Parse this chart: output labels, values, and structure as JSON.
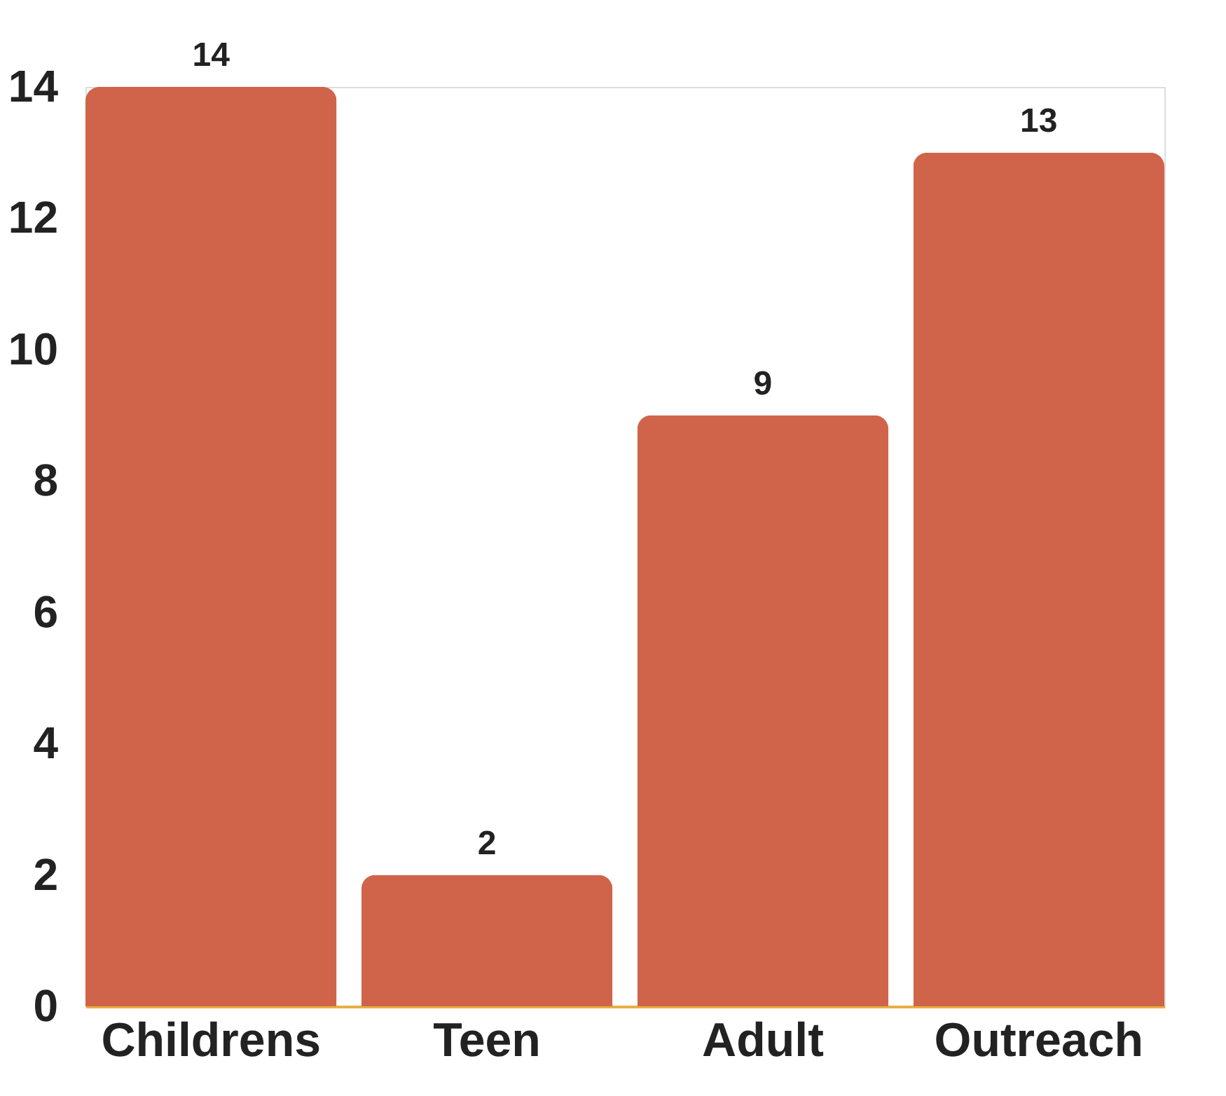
{
  "chart_data": {
    "type": "bar",
    "categories": [
      "Childrens",
      "Teen",
      "Adult",
      "Outreach"
    ],
    "values": [
      14,
      2,
      9,
      13
    ],
    "color": "#d0644a",
    "ylim": [
      0,
      14
    ],
    "yticks": [
      0,
      2,
      4,
      6,
      8,
      10,
      12,
      14
    ],
    "data_labels": true,
    "grid": false
  }
}
